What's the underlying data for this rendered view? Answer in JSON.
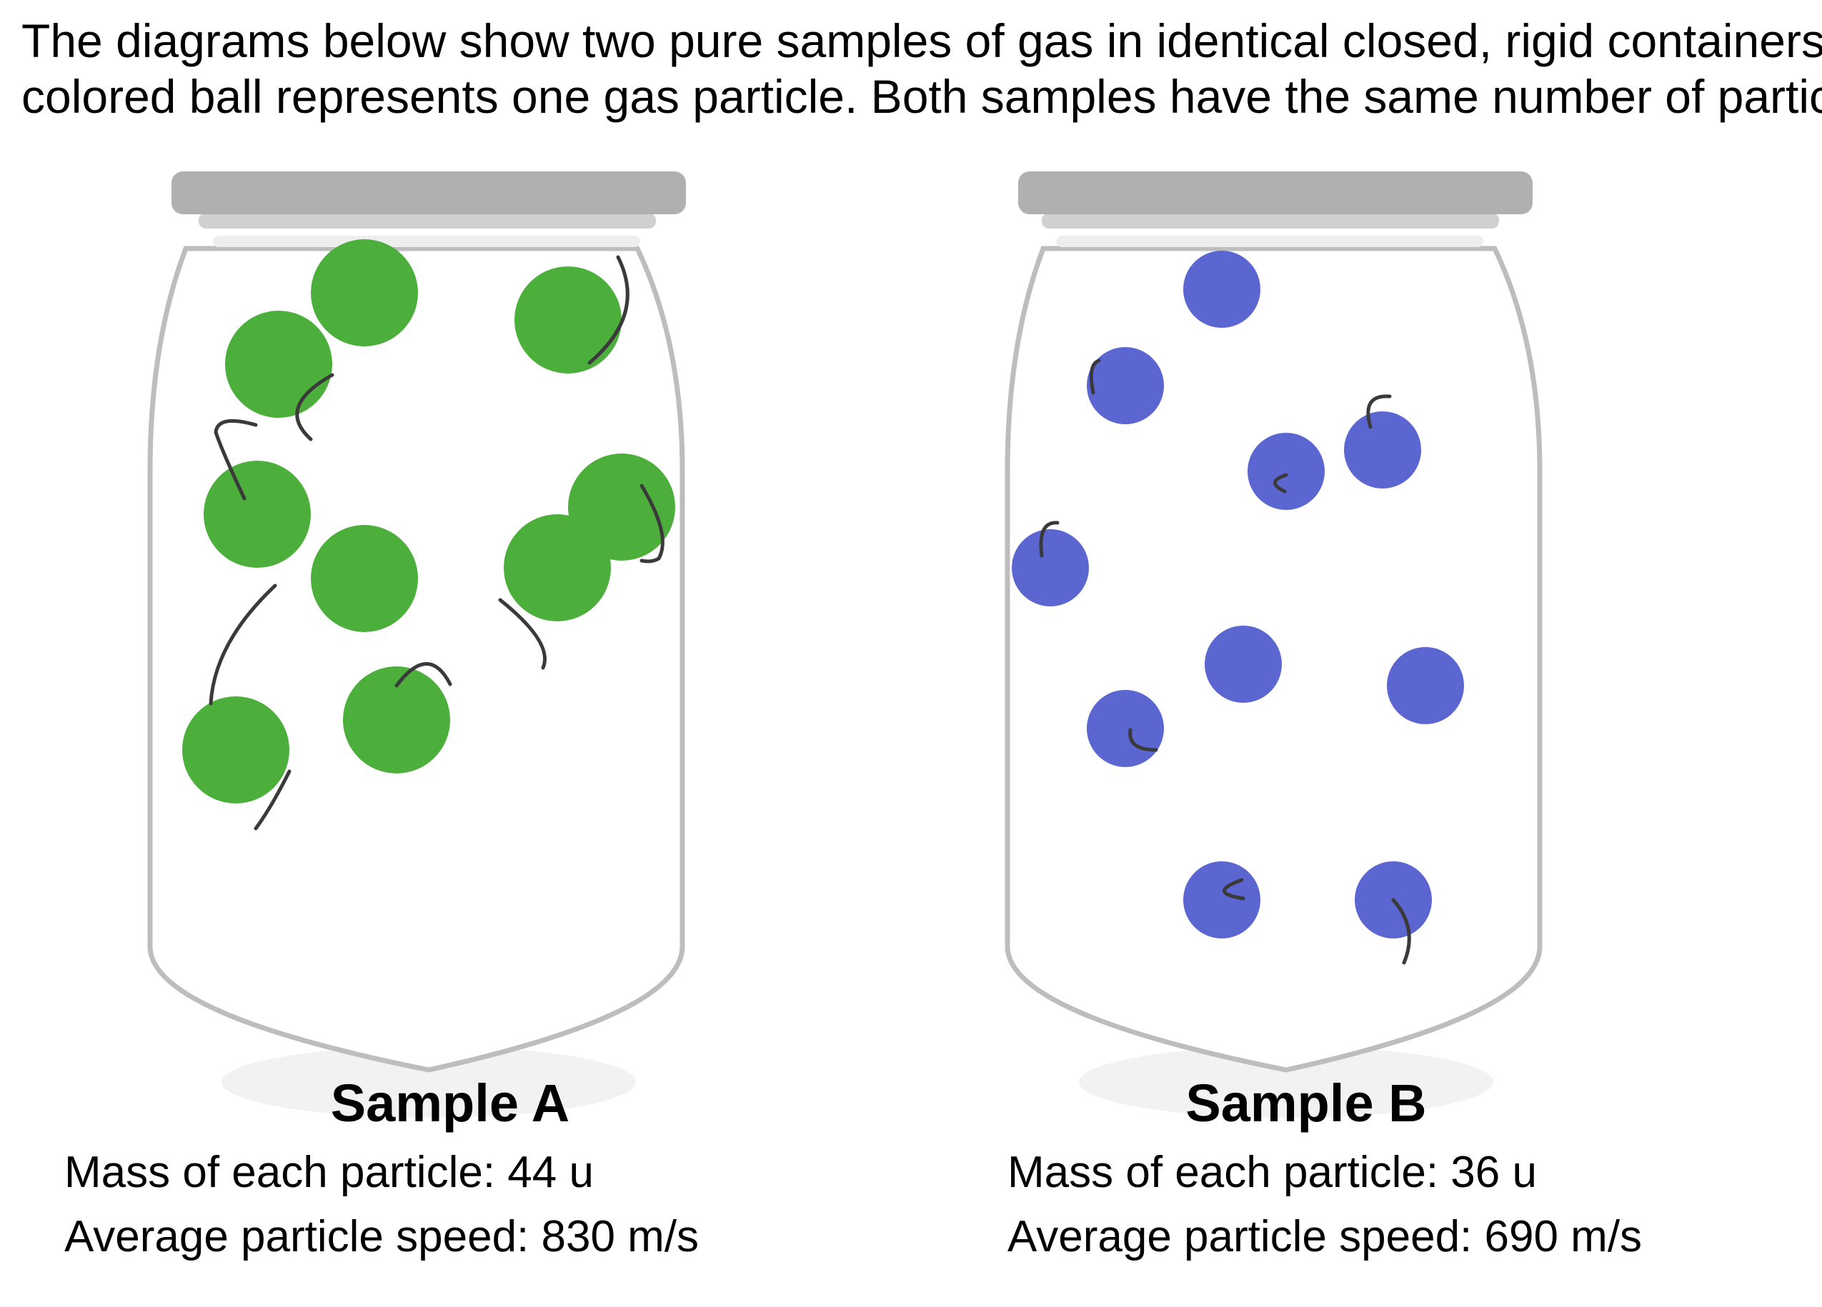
{
  "prompt": {
    "line1": "The diagrams below show two pure samples of gas in identical closed, rigid containers. Each",
    "line2": "colored ball represents one gas particle. Both samples have the same number of particles."
  },
  "samples": [
    {
      "title": "Sample A",
      "mass_label": "Mass of each particle:",
      "mass_value": "44 u",
      "speed_label": "Average particle speed:",
      "speed_value": "830 m/s",
      "particle_color": "#4caf3c"
    },
    {
      "title": "Sample B",
      "mass_label": "Mass of each particle:",
      "mass_value": "36 u",
      "speed_label": "Average particle speed:",
      "speed_value": "690 m/s",
      "particle_color": "#5c66d1"
    }
  ],
  "colors": {
    "jar_outline": "#bdbdbd",
    "lid": "#b0b0b0",
    "lid_band": "#d0d0d0",
    "shadow": "#f2f2f2",
    "trail": "#3a3a3a"
  }
}
